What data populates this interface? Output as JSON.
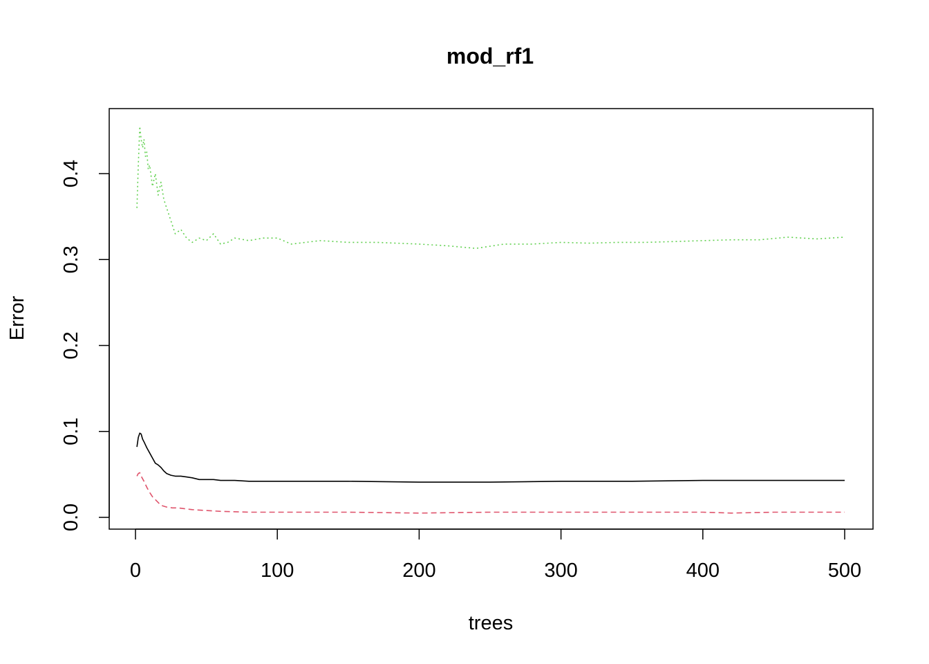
{
  "chart_data": {
    "type": "line",
    "title": "mod_rf1",
    "xlabel": "trees",
    "ylabel": "Error",
    "xlim": [
      0,
      500
    ],
    "ylim": [
      0,
      0.46
    ],
    "x_ticks": [
      0,
      100,
      200,
      300,
      400,
      500
    ],
    "x_tick_labels": [
      "0",
      "100",
      "200",
      "300",
      "400",
      "500"
    ],
    "y_ticks": [
      0.0,
      0.1,
      0.2,
      0.3,
      0.4
    ],
    "y_tick_labels": [
      "0.0",
      "0.1",
      "0.2",
      "0.3",
      "0.4"
    ],
    "grid": false,
    "legend": "none",
    "series": [
      {
        "color": "#000000",
        "dash": "solid",
        "x": [
          1,
          2,
          3,
          4,
          5,
          6,
          8,
          10,
          12,
          14,
          16,
          18,
          20,
          22,
          25,
          28,
          32,
          36,
          40,
          45,
          50,
          55,
          60,
          70,
          80,
          90,
          100,
          120,
          150,
          200,
          250,
          300,
          350,
          400,
          450,
          500
        ],
        "y": [
          0.082,
          0.093,
          0.098,
          0.097,
          0.091,
          0.088,
          0.081,
          0.075,
          0.069,
          0.063,
          0.061,
          0.058,
          0.054,
          0.051,
          0.049,
          0.048,
          0.048,
          0.047,
          0.046,
          0.044,
          0.044,
          0.044,
          0.043,
          0.043,
          0.042,
          0.042,
          0.042,
          0.042,
          0.042,
          0.041,
          0.041,
          0.042,
          0.042,
          0.043,
          0.043,
          0.043
        ]
      },
      {
        "color": "#df536b",
        "dash": "dashed",
        "x": [
          1,
          2,
          3,
          4,
          6,
          8,
          10,
          12,
          15,
          18,
          22,
          26,
          30,
          35,
          40,
          50,
          60,
          80,
          100,
          150,
          200,
          250,
          300,
          350,
          400,
          420,
          450,
          500
        ],
        "y": [
          0.048,
          0.051,
          0.052,
          0.048,
          0.042,
          0.035,
          0.029,
          0.024,
          0.019,
          0.014,
          0.012,
          0.011,
          0.011,
          0.01,
          0.009,
          0.008,
          0.007,
          0.006,
          0.006,
          0.006,
          0.005,
          0.006,
          0.006,
          0.006,
          0.006,
          0.005,
          0.006,
          0.006
        ]
      },
      {
        "color": "#61d04f",
        "dash": "dotted",
        "x": [
          1,
          2,
          3,
          4,
          5,
          6,
          7,
          8,
          9,
          10,
          12,
          14,
          16,
          18,
          20,
          22,
          25,
          28,
          32,
          36,
          40,
          45,
          50,
          55,
          60,
          65,
          70,
          80,
          90,
          100,
          110,
          120,
          130,
          150,
          170,
          200,
          220,
          240,
          260,
          280,
          300,
          320,
          340,
          360,
          380,
          400,
          420,
          440,
          460,
          480,
          500
        ],
        "y": [
          0.36,
          0.41,
          0.455,
          0.44,
          0.43,
          0.44,
          0.42,
          0.425,
          0.405,
          0.41,
          0.385,
          0.4,
          0.375,
          0.39,
          0.37,
          0.36,
          0.345,
          0.33,
          0.335,
          0.325,
          0.32,
          0.325,
          0.322,
          0.33,
          0.318,
          0.32,
          0.325,
          0.322,
          0.325,
          0.325,
          0.318,
          0.32,
          0.322,
          0.32,
          0.32,
          0.318,
          0.316,
          0.313,
          0.318,
          0.318,
          0.32,
          0.319,
          0.32,
          0.32,
          0.321,
          0.322,
          0.323,
          0.323,
          0.326,
          0.324,
          0.326
        ]
      }
    ]
  }
}
